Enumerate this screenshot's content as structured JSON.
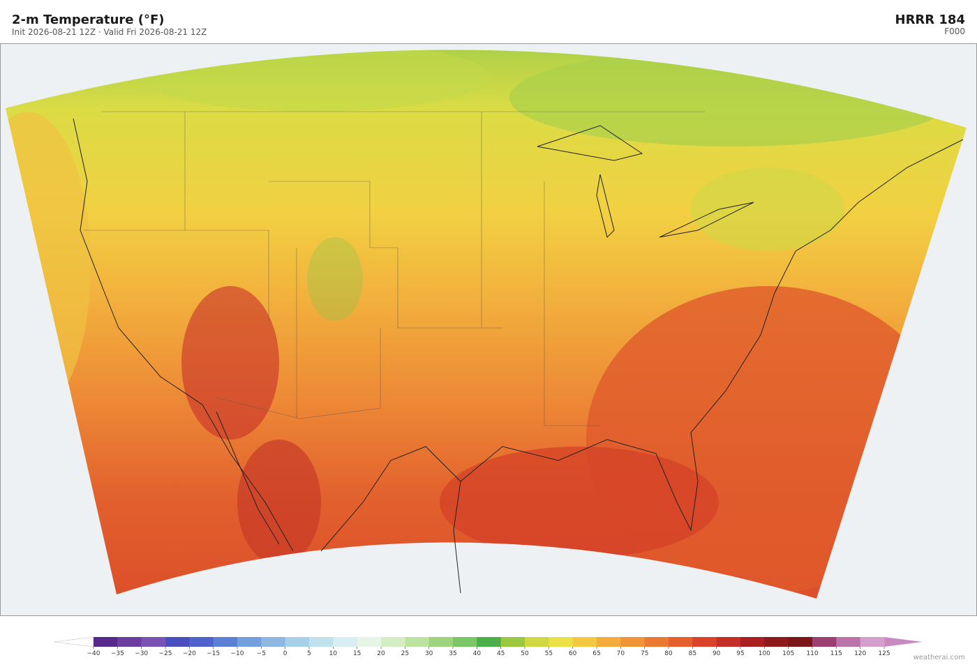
{
  "header": {
    "title": "2-m Temperature  (°F)",
    "subtitle": "Init 2026-08-21 12Z   ·   Valid Fri 2026-08-21 12Z",
    "model": "HRRR  184",
    "forecast": "F000"
  },
  "colorbar": {
    "ticks": [
      {
        "value": -40,
        "label": "−40"
      },
      {
        "value": -35,
        "label": "−35"
      },
      {
        "value": -30,
        "label": "−30"
      },
      {
        "value": -25,
        "label": "−25"
      },
      {
        "value": -20,
        "label": "−20"
      },
      {
        "value": -15,
        "label": "−15"
      },
      {
        "value": -10,
        "label": "−10"
      },
      {
        "value": -5,
        "label": "−5"
      },
      0,
      5,
      10,
      15,
      20,
      25,
      30,
      35,
      40,
      45,
      50,
      55,
      60,
      65,
      70,
      75,
      80,
      85,
      90,
      95,
      100,
      105,
      110,
      115,
      120,
      125
    ],
    "colors": [
      "#562a8a",
      "#6b3fa0",
      "#7a52b5",
      "#4a4fc0",
      "#4f63cc",
      "#5b80d4",
      "#73a0dc",
      "#8fb8e0",
      "#a8d0e8",
      "#c0e2ef",
      "#d8eef2",
      "#e6f5e6",
      "#d5edc5",
      "#bde3a0",
      "#9dd57e",
      "#7cc765",
      "#4daf4a",
      "#9ac83f",
      "#cfd843",
      "#ebe046",
      "#f4c842",
      "#f4ad3c",
      "#f09438",
      "#ec7a33",
      "#e6602d",
      "#d9432a",
      "#c32e26",
      "#a8201f",
      "#8e1a1c",
      "#7a1518",
      "#9b4070",
      "#bb74aa",
      "#d49fcc"
    ],
    "under_color": "#ffffff",
    "over_color": "#c98bbf"
  },
  "footer": {
    "credit": "weatherai.com"
  }
}
